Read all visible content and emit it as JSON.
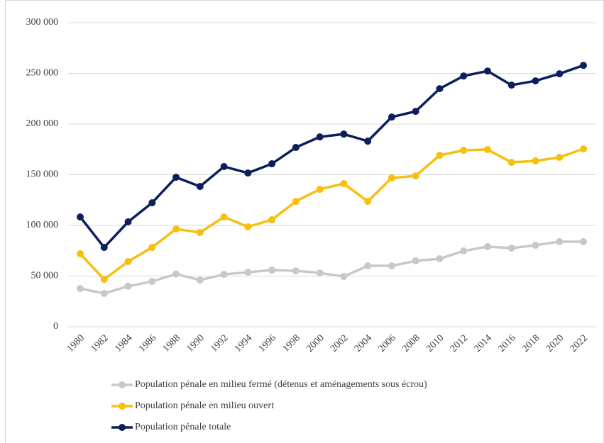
{
  "chart_data": {
    "type": "line",
    "categories": [
      "1980",
      "1982",
      "1984",
      "1986",
      "1988",
      "1990",
      "1992",
      "1994",
      "1996",
      "1998",
      "2000",
      "2002",
      "2004",
      "2006",
      "2008",
      "2010",
      "2012",
      "2014",
      "2016",
      "2018",
      "2020",
      "2022"
    ],
    "series": [
      {
        "name": "Population pénale en milieu fermé (détenus et aménagements sous écrou)",
        "color": "#c8c8c8",
        "values": [
          37700,
          32900,
          40000,
          44700,
          52000,
          46000,
          51700,
          53800,
          55900,
          55200,
          53100,
          49600,
          60100,
          60100,
          65000,
          67100,
          74800,
          79000,
          77600,
          80400,
          83900,
          83900
        ]
      },
      {
        "name": "Population pénale en milieu ouvert",
        "color": "#f7bf10",
        "values": [
          72000,
          46800,
          64300,
          78300,
          96500,
          93000,
          108300,
          98600,
          105600,
          123700,
          135600,
          141200,
          123700,
          146800,
          148900,
          169200,
          174100,
          174800,
          162200,
          163600,
          167100,
          175500
        ]
      },
      {
        "name": "Population pénale totale",
        "color": "#0b1f5c",
        "values": [
          108300,
          78300,
          103500,
          122300,
          147500,
          138400,
          158000,
          151700,
          160800,
          176900,
          187300,
          190100,
          183100,
          206900,
          212500,
          234900,
          247400,
          252300,
          238400,
          242600,
          249600,
          257900
        ]
      }
    ],
    "ylim": [
      0,
      300000
    ],
    "yticks": [
      0,
      {
        "value": 50000,
        "label": "50 000"
      },
      {
        "value": 100000,
        "label": "100 000"
      },
      {
        "value": 150000,
        "label": "150 000"
      },
      {
        "value": 200000,
        "label": "200 000"
      },
      {
        "value": 250000,
        "label": "250 000"
      },
      {
        "value": 300000,
        "label": "300 000"
      }
    ],
    "grid": true,
    "legend": "bottom"
  }
}
